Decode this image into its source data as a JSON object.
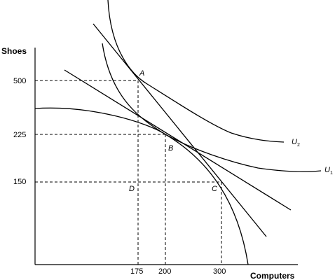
{
  "chart_data": {
    "type": "line",
    "xlabel": "Computers",
    "ylabel": "Shoes",
    "x_ticks": [
      "175",
      "200",
      "300"
    ],
    "y_ticks": [
      "500",
      "225",
      "150"
    ],
    "points": [
      {
        "label": "A",
        "x": 175,
        "y": 500
      },
      {
        "label": "B",
        "x": 200,
        "y": 225
      },
      {
        "label": "C",
        "x": 300,
        "y": 150
      },
      {
        "label": "D",
        "x": 175,
        "y": 150
      }
    ],
    "curves": [
      {
        "name": "U",
        "subscript": "2",
        "kind": "indifference"
      },
      {
        "name": "U",
        "subscript": "1",
        "kind": "indifference"
      },
      {
        "name": "",
        "kind": "production possibility frontier"
      },
      {
        "name": "",
        "kind": "price line through A and C"
      },
      {
        "name": "",
        "kind": "price line tangent at B"
      }
    ]
  }
}
